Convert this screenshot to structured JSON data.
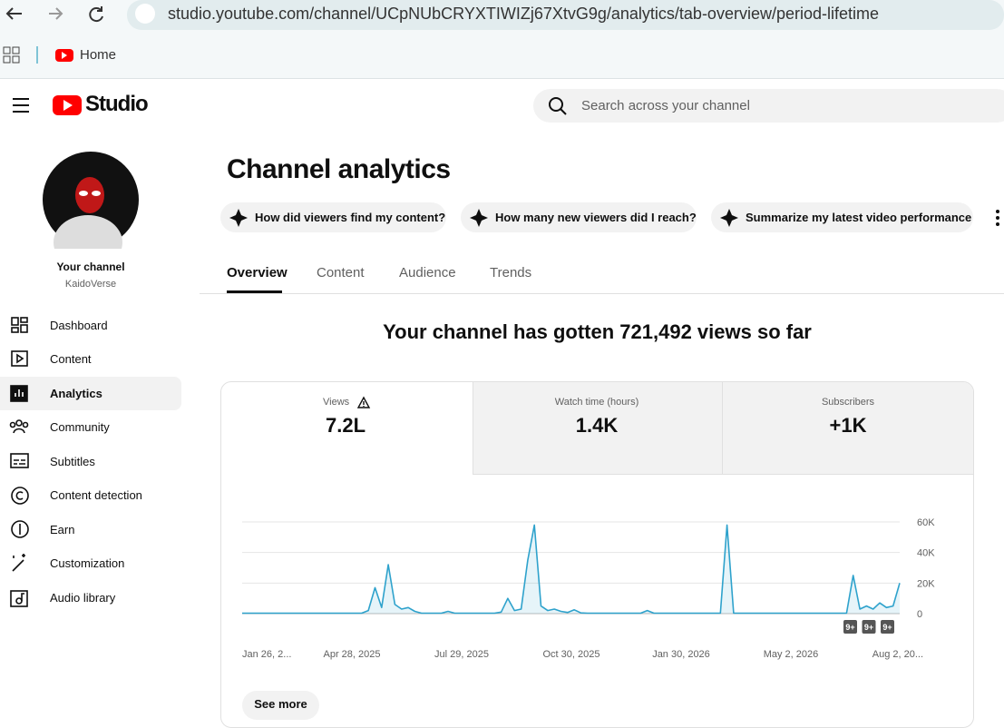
{
  "browser": {
    "url": "studio.youtube.com/channel/UCpNUbCRYXTIWIZj67XtvG9g/analytics/tab-overview/period-lifetime",
    "bookmark": "Home"
  },
  "header": {
    "logo": "Studio",
    "search": "Search across your channel"
  },
  "sidebar": {
    "channel_label": "Your channel",
    "channel_name": "KaidoVerse",
    "nav": [
      "Dashboard",
      "Content",
      "Analytics",
      "Community",
      "Subtitles",
      "Content detection",
      "Earn",
      "Customization",
      "Audio library"
    ]
  },
  "main": {
    "title": "Channel analytics",
    "prompts": [
      "How did viewers find my content?",
      "How many new viewers did I reach?",
      "Summarize my latest video performance"
    ],
    "tabs": [
      "Overview",
      "Content",
      "Audience",
      "Trends"
    ],
    "headline": "Your channel has gotten 721,492 views so far",
    "metrics": [
      {
        "label": "Views",
        "value": "7.2L"
      },
      {
        "label": "Watch time (hours)",
        "value": "1.4K"
      },
      {
        "label": "Subscribers",
        "value": "+1K"
      }
    ],
    "see_more": "See more"
  },
  "chart_data": {
    "type": "line",
    "color": "#2ea2cc",
    "grid": true,
    "ylim": [
      0,
      60000
    ],
    "yticks": [
      {
        "value": 0,
        "label": "0"
      },
      {
        "value": 20000,
        "label": "20K"
      },
      {
        "value": 40000,
        "label": "40K"
      },
      {
        "value": 60000,
        "label": "60K"
      }
    ],
    "x_labels": [
      "Jan 26, 2...",
      "Apr 28, 2025",
      "Jul 29, 2025",
      "Oct 30, 2025",
      "Jan 30, 2026",
      "May 2, 2026",
      "Aug 2, 20..."
    ],
    "badges": [
      "9+",
      "9+",
      "9+"
    ],
    "series": [
      {
        "name": "Views",
        "color": "#2ea2cc",
        "values": [
          300,
          300,
          300,
          300,
          300,
          300,
          300,
          300,
          300,
          300,
          300,
          300,
          300,
          300,
          300,
          300,
          300,
          300,
          300,
          2000,
          17000,
          4000,
          32000,
          6000,
          3000,
          4000,
          1500,
          300,
          300,
          300,
          300,
          1500,
          300,
          300,
          300,
          300,
          300,
          300,
          300,
          1000,
          10000,
          2000,
          3000,
          35000,
          58000,
          5000,
          2000,
          3000,
          1500,
          800,
          2500,
          500,
          300,
          300,
          300,
          300,
          300,
          300,
          300,
          300,
          300,
          2000,
          300,
          300,
          300,
          300,
          300,
          300,
          300,
          300,
          300,
          300,
          300,
          58000,
          300,
          300,
          300,
          300,
          300,
          300,
          300,
          300,
          300,
          300,
          300,
          300,
          300,
          300,
          300,
          300,
          300,
          300,
          25000,
          3000,
          5000,
          3000,
          7000,
          4000,
          5000,
          20000
        ]
      }
    ]
  }
}
